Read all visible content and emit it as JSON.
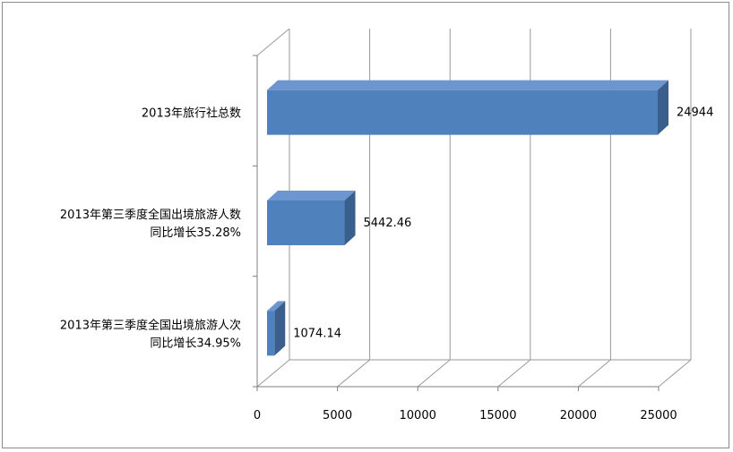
{
  "chart_data": {
    "type": "bar",
    "orientation": "horizontal",
    "three_d": true,
    "categories": [
      "2013年旅行社总数",
      "2013年第三季度全国出境旅游人数同比增长35.28%",
      "2013年第三季度全国出境旅游人次同比增长34.95%"
    ],
    "category_lines": [
      [
        "2013年旅行社总数"
      ],
      [
        "2013年第三季度全国出境旅游人数",
        "同比增长35.28%"
      ],
      [
        "2013年第三季度全国出境旅游人次",
        "同比增长34.95%"
      ]
    ],
    "values": [
      24944,
      5442.46,
      1074.14
    ],
    "data_labels": [
      "24944",
      "5442.46",
      "1074.14"
    ],
    "xlim": [
      0,
      25000
    ],
    "x_ticks": [
      0,
      5000,
      10000,
      15000,
      20000,
      25000
    ],
    "x_tick_labels": [
      "0",
      "5000",
      "10000",
      "15000",
      "20000",
      "25000"
    ],
    "grid": true,
    "legend": false,
    "colors": {
      "bar_front": "#4f81bd",
      "bar_top": "#6d95cf",
      "bar_side": "#3a5f8c",
      "grid": "#999999",
      "axis": "#7f7f7f"
    }
  }
}
